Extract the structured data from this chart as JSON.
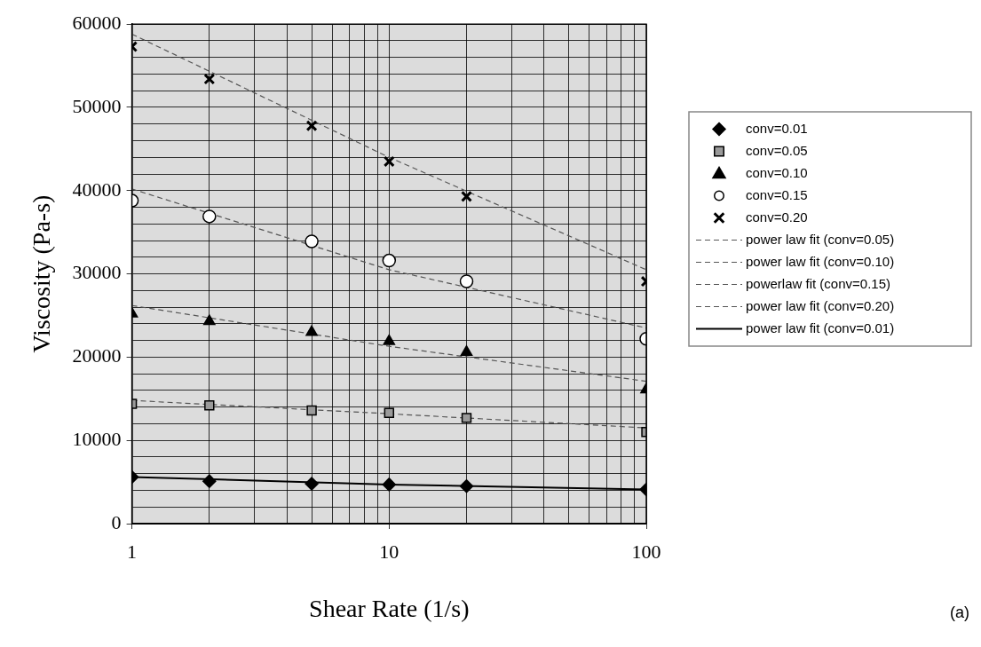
{
  "chart_data": {
    "type": "scatter",
    "xlabel": "Shear Rate (1/s)",
    "ylabel": "Viscosity (Pa-s)",
    "log": "x",
    "xlim": [
      1,
      100
    ],
    "ylim": [
      0,
      60000
    ],
    "xticks": [
      1,
      {
        "value": 2,
        "label": null
      },
      {
        "value": 3,
        "label": null
      },
      {
        "value": 4,
        "label": null
      },
      {
        "value": 5,
        "label": null
      },
      {
        "value": 6,
        "label": null
      },
      {
        "value": 7,
        "label": null
      },
      {
        "value": 8,
        "label": null
      },
      {
        "value": 9,
        "label": null
      },
      10,
      {
        "value": 20,
        "label": null
      },
      {
        "value": 30,
        "label": null
      },
      {
        "value": 40,
        "label": null
      },
      {
        "value": 50,
        "label": null
      },
      {
        "value": 60,
        "label": null
      },
      {
        "value": 70,
        "label": null
      },
      {
        "value": 80,
        "label": null
      },
      {
        "value": 90,
        "label": null
      },
      100
    ],
    "yticks": [
      0,
      {
        "value": 2000,
        "label": null
      },
      {
        "value": 4000,
        "label": null
      },
      {
        "value": 6000,
        "label": null
      },
      {
        "value": 8000,
        "label": null
      },
      10000,
      {
        "value": 12000,
        "label": null
      },
      {
        "value": 14000,
        "label": null
      },
      {
        "value": 16000,
        "label": null
      },
      {
        "value": 18000,
        "label": null
      },
      20000,
      {
        "value": 22000,
        "label": null
      },
      {
        "value": 24000,
        "label": null
      },
      {
        "value": 26000,
        "label": null
      },
      {
        "value": 28000,
        "label": null
      },
      30000,
      {
        "value": 32000,
        "label": null
      },
      {
        "value": 34000,
        "label": null
      },
      {
        "value": 36000,
        "label": null
      },
      {
        "value": 38000,
        "label": null
      },
      40000,
      {
        "value": 42000,
        "label": null
      },
      {
        "value": 44000,
        "label": null
      },
      {
        "value": 46000,
        "label": null
      },
      {
        "value": 48000,
        "label": null
      },
      50000,
      {
        "value": 52000,
        "label": null
      },
      {
        "value": 54000,
        "label": null
      },
      {
        "value": 56000,
        "label": null
      },
      {
        "value": 58000,
        "label": null
      },
      60000
    ],
    "grid": true,
    "legend": "right",
    "x": [
      1,
      2,
      5,
      10,
      20,
      100
    ],
    "series": [
      {
        "name": "conv=0.01",
        "color": "#000000",
        "marker": "diamond",
        "values": [
          5600,
          5100,
          4800,
          4700,
          4500,
          4100
        ]
      },
      {
        "name": "conv=0.05",
        "color": "#000000",
        "marker": "square",
        "values": [
          14400,
          14200,
          13600,
          13300,
          12700,
          11000
        ]
      },
      {
        "name": "conv=0.10",
        "color": "#000000",
        "marker": "triangle",
        "values": [
          25200,
          24300,
          23000,
          21900,
          20600,
          16100
        ]
      },
      {
        "name": "conv=0.15",
        "color": "#000000",
        "marker": "circle",
        "values": [
          38800,
          36900,
          33900,
          31600,
          29100,
          22200
        ]
      },
      {
        "name": "conv=0.20",
        "color": "#000000",
        "marker": "cross",
        "values": [
          57300,
          53400,
          47800,
          43500,
          39300,
          29100
        ]
      },
      {
        "name": "power law fit (conv=0.05)",
        "type": "line",
        "color": "#555555",
        "line_style": "dashed",
        "marker": "none",
        "x": [
          1,
          10,
          100
        ],
        "values": [
          14800,
          13200,
          11500
        ]
      },
      {
        "name": "power law fit (conv=0.10)",
        "type": "line",
        "color": "#555555",
        "line_style": "dashed",
        "marker": "none",
        "x": [
          1,
          10,
          100
        ],
        "values": [
          26200,
          21300,
          17100
        ]
      },
      {
        "name": "powerlaw fit (conv=0.15)",
        "type": "line",
        "color": "#555555",
        "line_style": "dashed",
        "marker": "none",
        "x": [
          1,
          10,
          100
        ],
        "values": [
          40200,
          30500,
          23500
        ]
      },
      {
        "name": "power law fit (conv=0.20)",
        "type": "line",
        "color": "#555555",
        "line_style": "dashed",
        "marker": "none",
        "x": [
          1,
          10,
          100
        ],
        "values": [
          58800,
          44000,
          30500
        ]
      },
      {
        "name": "power law fit (conv=0.01)",
        "type": "line",
        "color": "#000000",
        "line_style": "solid",
        "marker": "none",
        "x": [
          1,
          10,
          100
        ],
        "values": [
          5600,
          4700,
          4100
        ]
      }
    ],
    "annotations": [
      "(a)"
    ]
  }
}
